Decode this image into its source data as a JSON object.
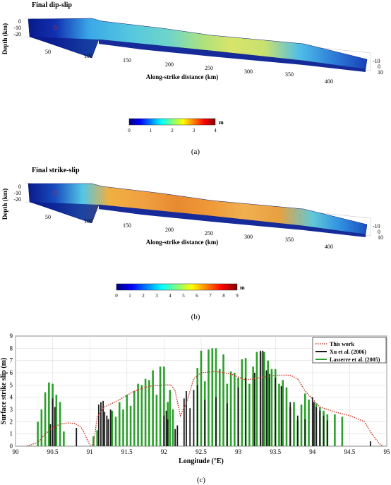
{
  "panel_a": {
    "title": "Final dip-slip",
    "ylabel": "Depth (km)",
    "depth_ticks": [
      "0",
      "-10",
      "-20"
    ],
    "x_ticks": [
      "50",
      "100",
      "150",
      "200",
      "250",
      "300",
      "350",
      "400"
    ],
    "xlabel": "Along-strike distance (km)",
    "right_ticks": [
      "-10",
      "0",
      "10"
    ],
    "colorbar_ticks": [
      "0",
      "1",
      "2",
      "3",
      "4"
    ],
    "colorbar_unit": "m",
    "caption": "(a)"
  },
  "panel_b": {
    "title": "Final strike-slip",
    "ylabel": "Depth (km)",
    "depth_ticks": [
      "0",
      "-10",
      "-20"
    ],
    "x_ticks": [
      "50",
      "100",
      "150",
      "200",
      "250",
      "300",
      "350",
      "400"
    ],
    "xlabel": "Along-strike distance (km)",
    "right_ticks": [
      "-10",
      "0",
      "10"
    ],
    "colorbar_ticks": [
      "0",
      "1",
      "2",
      "3",
      "4",
      "5",
      "6",
      "7",
      "8",
      "9"
    ],
    "colorbar_unit": "m",
    "caption": "(b)"
  },
  "chart_data": {
    "type": "bar",
    "xlabel": "Longitude (°E)",
    "ylabel": "Surface strike slip (m)",
    "xlim": [
      90,
      95
    ],
    "ylim": [
      0,
      9
    ],
    "x_ticks": [
      90,
      90.5,
      91,
      91.5,
      92,
      92.5,
      93,
      93.5,
      94,
      94.5,
      95
    ],
    "y_ticks": [
      0,
      1,
      2,
      3,
      4,
      5,
      6,
      7,
      8,
      9
    ],
    "grid": true,
    "legend_position": "top-right",
    "caption": "(c)",
    "series": [
      {
        "name": "This work",
        "kind": "line",
        "style": "dotted",
        "color": "#c0392b",
        "x": [
          90.15,
          90.3,
          90.4,
          90.5,
          90.6,
          90.7,
          90.8,
          90.87,
          90.9,
          91.0,
          91.05,
          91.1,
          91.2,
          91.4,
          91.6,
          91.8,
          92.0,
          92.1,
          92.15,
          92.22,
          92.3,
          92.4,
          92.5,
          92.7,
          92.9,
          93.1,
          93.3,
          93.5,
          93.6,
          93.7,
          93.8,
          93.9,
          94.1,
          94.3,
          94.5,
          94.7,
          94.8,
          94.9,
          94.95
        ],
        "y": [
          0,
          0.3,
          1.0,
          1.5,
          1.8,
          1.9,
          1.85,
          1.6,
          1.4,
          0.1,
          0.1,
          2.4,
          3.2,
          3.8,
          4.5,
          4.9,
          5.0,
          5.0,
          4.5,
          2.5,
          3.5,
          5.5,
          6.0,
          6.1,
          5.9,
          5.4,
          5.6,
          5.8,
          5.8,
          5.8,
          5.5,
          4.5,
          3.2,
          2.8,
          2.5,
          2.0,
          1.0,
          0.2,
          0
        ]
      },
      {
        "name": "Xu et al. (2006)",
        "kind": "bars",
        "color": "#1a1a1a",
        "x": [
          90.47,
          90.5,
          90.53,
          90.82,
          91.12,
          91.15,
          91.18,
          91.2,
          91.23,
          91.25,
          91.28,
          92.0,
          92.03,
          92.05,
          92.15,
          92.18,
          92.27,
          92.3,
          92.35,
          92.4,
          92.45,
          92.55,
          92.7,
          92.85,
          93.0,
          93.1,
          93.22,
          93.3,
          93.33,
          93.38,
          93.42,
          93.5,
          93.58,
          93.7,
          93.8,
          93.9,
          94.0,
          94.02,
          94.05,
          94.1,
          94.15,
          94.2,
          94.78
        ],
        "y": [
          1.8,
          3.9,
          3.2,
          1.5,
          3.4,
          3.6,
          3.7,
          2.8,
          2.5,
          2.2,
          3.0,
          2.5,
          2.9,
          2.2,
          1.4,
          1.7,
          3.9,
          4.5,
          3.1,
          4.6,
          5.0,
          3.8,
          4.0,
          3.5,
          4.8,
          5.6,
          6.0,
          7.8,
          7.8,
          6.2,
          5.9,
          5.6,
          4.9,
          3.6,
          2.5,
          2.2,
          4.0,
          3.6,
          3.2,
          2.9,
          2.5,
          2.1,
          0.4
        ]
      },
      {
        "name": "Lasserre et al. (2005)",
        "kind": "bars",
        "color": "#2ca02c",
        "x": [
          90.3,
          90.35,
          90.4,
          90.45,
          90.5,
          90.55,
          90.6,
          90.65,
          91.05,
          91.1,
          91.3,
          91.35,
          91.4,
          91.45,
          91.5,
          91.55,
          91.6,
          91.65,
          91.7,
          91.75,
          91.8,
          91.85,
          91.9,
          91.95,
          92.0,
          92.05,
          92.08,
          92.12,
          92.45,
          92.5,
          92.55,
          92.6,
          92.65,
          92.7,
          92.75,
          92.8,
          92.85,
          92.9,
          92.95,
          93.0,
          93.05,
          93.1,
          93.15,
          93.2,
          93.25,
          93.3,
          93.35,
          93.4,
          93.45,
          93.5,
          93.55,
          93.6,
          93.65,
          93.7,
          93.75,
          93.8,
          93.85,
          93.9,
          93.95,
          94.05,
          94.1,
          94.15,
          94.2,
          94.3,
          94.4
        ],
        "y": [
          2.0,
          3.0,
          4.4,
          5.2,
          5.1,
          4.2,
          3.6,
          1.2,
          0.8,
          1.3,
          2.9,
          2.4,
          3.6,
          3.0,
          4.2,
          3.3,
          4.5,
          5.1,
          5.0,
          5.5,
          5.4,
          6.2,
          4.2,
          6.5,
          6.5,
          3.6,
          4.6,
          3.0,
          6.4,
          7.8,
          5.3,
          7.9,
          8.0,
          8.0,
          6.3,
          7.5,
          5.1,
          6.1,
          6.0,
          5.6,
          7.1,
          7.2,
          5.1,
          6.5,
          7.7,
          7.7,
          7.7,
          7.0,
          6.3,
          6.3,
          5.1,
          5.4,
          4.8,
          3.2,
          3.6,
          2.1,
          3.4,
          4.3,
          3.8,
          3.5,
          3.2,
          2.9,
          2.6,
          2.6,
          2.4
        ]
      }
    ]
  }
}
